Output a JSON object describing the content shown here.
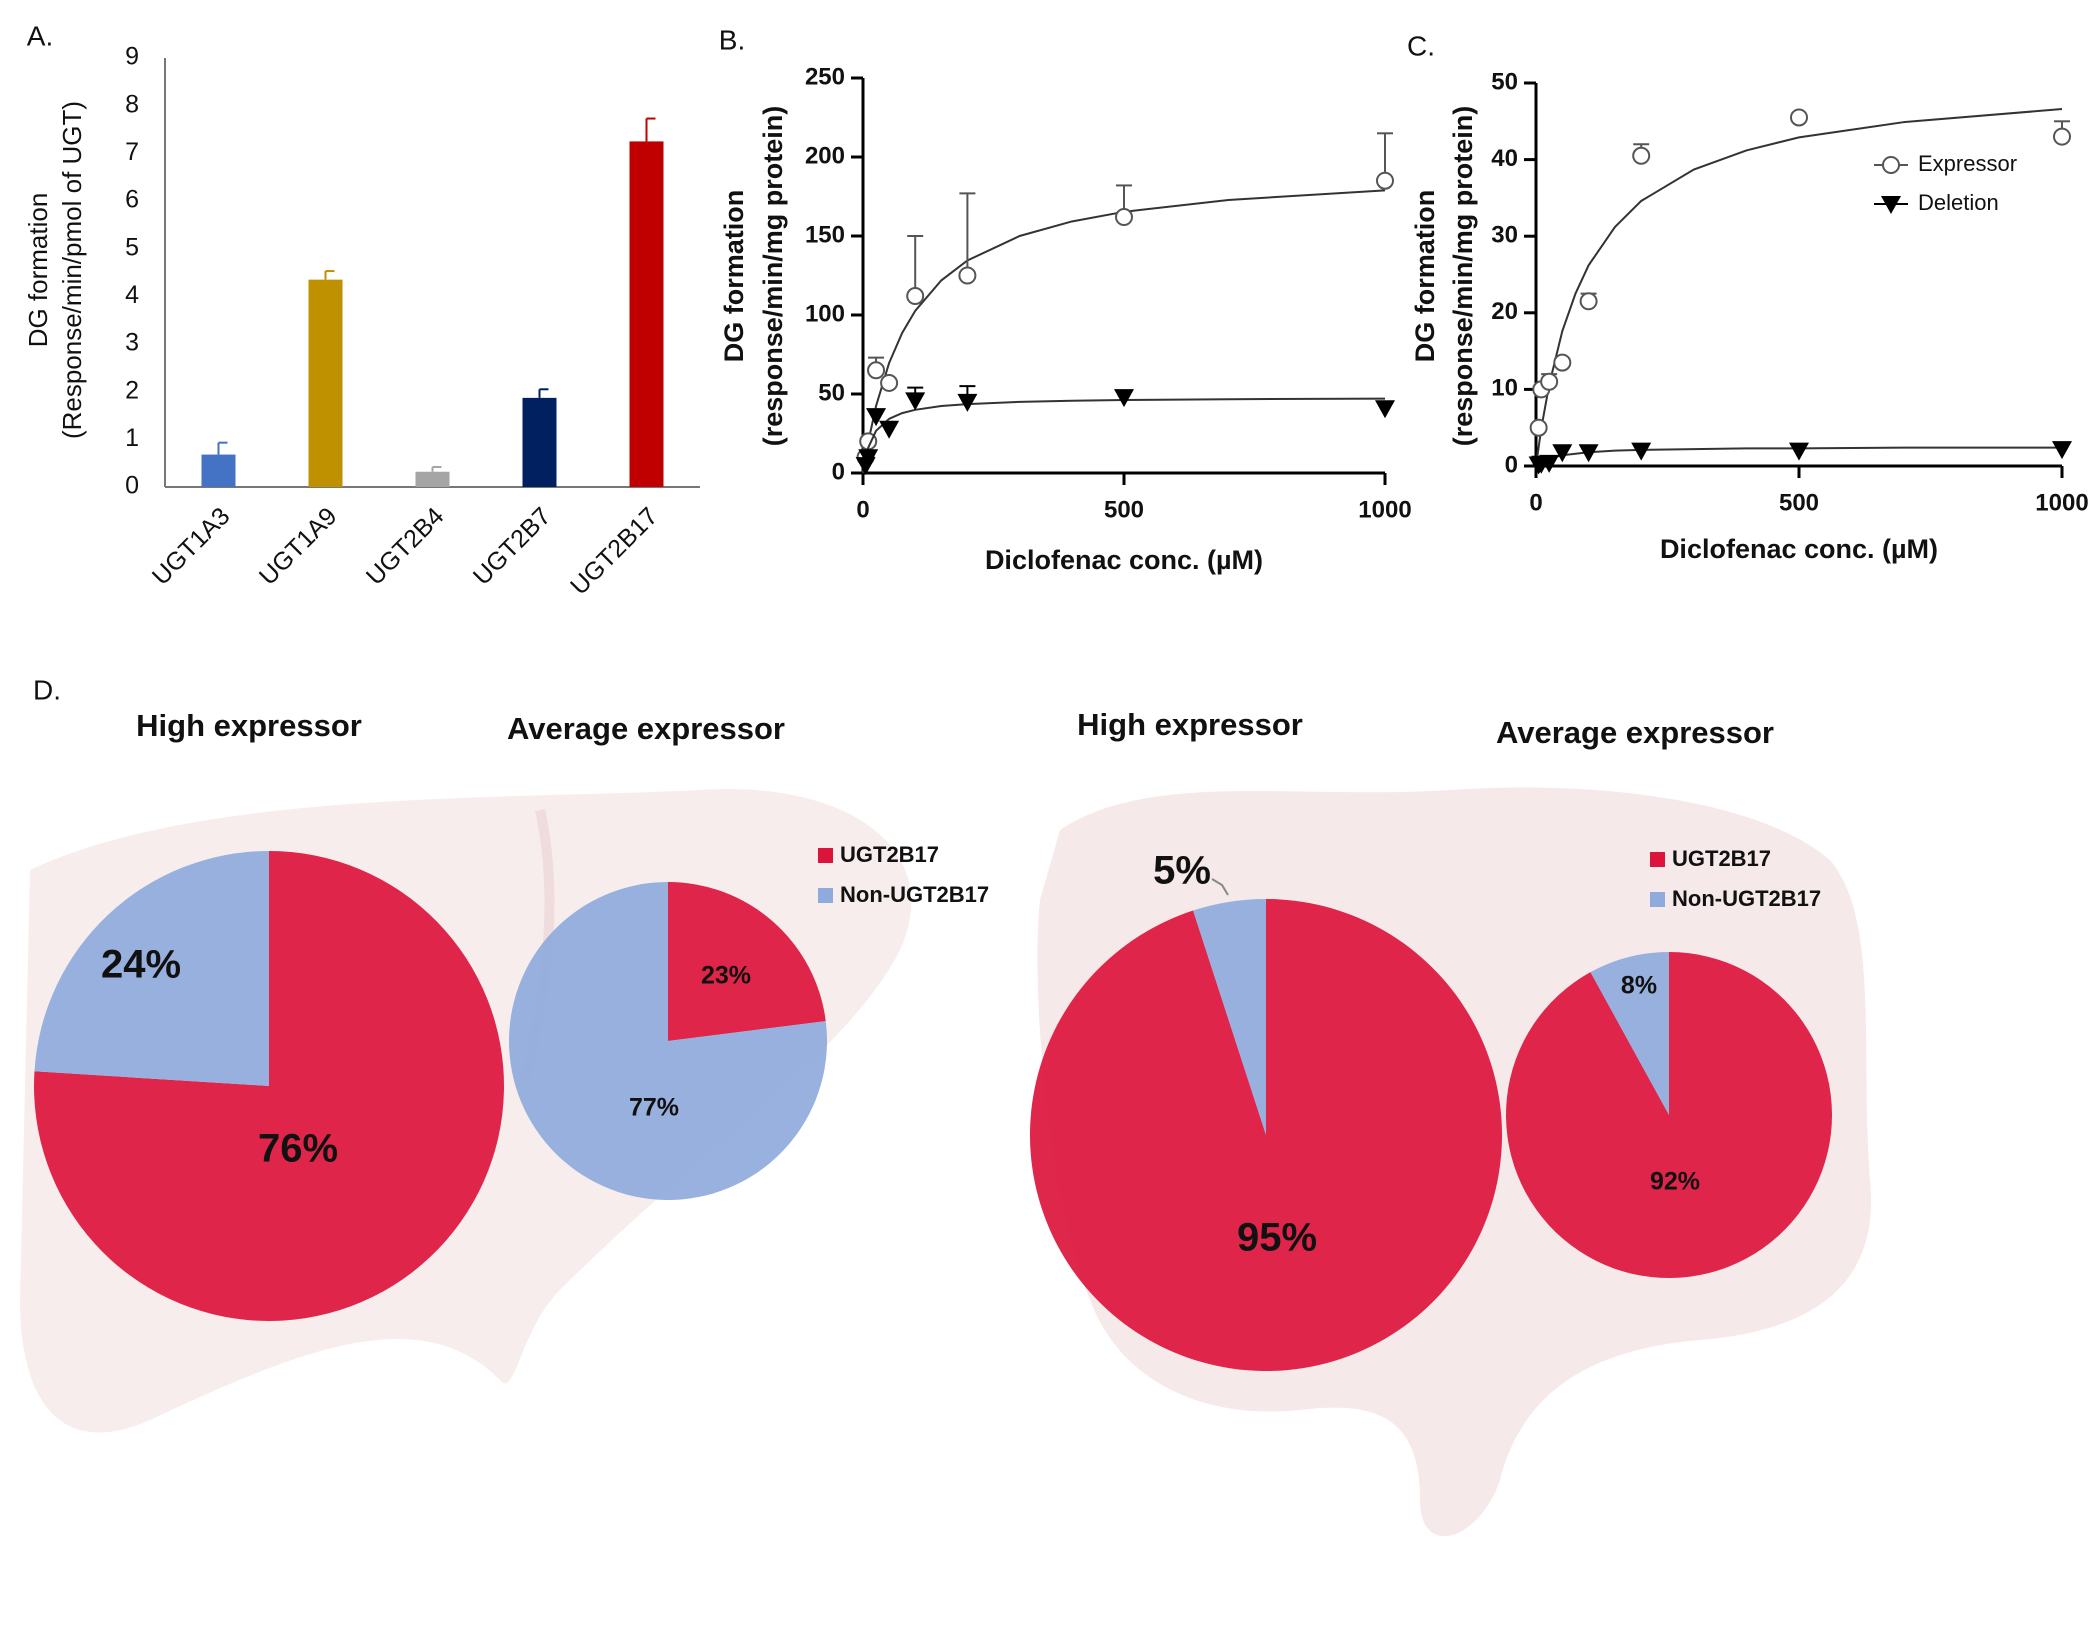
{
  "chart_data": [
    {
      "type": "bar",
      "label": "A.",
      "y_label": [
        "DG formation",
        "(Response/min/pmol of UGT)"
      ],
      "categories": [
        "UGT1A3",
        "UGT1A9",
        "UGT2B4",
        "UGT2B7",
        "UGT2B17"
      ],
      "values": [
        0.68,
        4.35,
        0.32,
        1.87,
        7.25
      ],
      "errors": [
        0.25,
        0.18,
        0.1,
        0.18,
        0.48
      ],
      "colors": [
        "#4472c4",
        "#bf9000",
        "#a5a5a5",
        "#002060",
        "#c00000"
      ],
      "ylim": [
        0,
        9
      ],
      "yticks": [
        0,
        1,
        2,
        3,
        4,
        5,
        6,
        7,
        8,
        9
      ]
    },
    {
      "type": "scatter",
      "label": "B.",
      "x_label": "Diclofenac conc. (µM)",
      "y_label": [
        "DG formation",
        "(response/min/mg protein)"
      ],
      "xlim": [
        0,
        1000
      ],
      "xticks": [
        0,
        500,
        1000
      ],
      "ylim": [
        0,
        250
      ],
      "yticks": [
        0,
        50,
        100,
        150,
        200,
        250
      ],
      "series": [
        {
          "marker": "open-circle",
          "color": "#555555",
          "x": [
            5,
            10,
            25,
            50,
            100,
            200,
            500,
            1000
          ],
          "values": [
            10,
            20,
            65,
            57,
            112,
            125,
            162,
            185
          ],
          "errors": [
            0,
            0,
            8,
            0,
            38,
            52,
            20,
            30
          ],
          "curve": {
            "x": [
              0,
              10,
              25,
              50,
              75,
              100,
              150,
              200,
              300,
              400,
              500,
              700,
              1000
            ],
            "values": [
              0,
              19.5,
              42.4,
              69.6,
              88.6,
              102.6,
              121.9,
              134.5,
              150,
              159.2,
              165.3,
              172.8,
              178.9
            ]
          }
        },
        {
          "marker": "filled-triangle-down",
          "color": "#000000",
          "x": [
            5,
            10,
            25,
            50,
            100,
            200,
            500,
            1000
          ],
          "values": [
            5,
            10,
            36,
            28,
            46,
            45,
            48,
            41
          ],
          "errors": [
            0,
            0,
            0,
            0,
            8,
            10,
            0,
            0
          ],
          "curve": {
            "x": [
              0,
              10,
              25,
              50,
              75,
              100,
              150,
              200,
              300,
              400,
              500,
              700,
              1000
            ],
            "values": [
              0,
              16,
              26.7,
              34.3,
              37.9,
              40,
              42.4,
              43.6,
              45,
              45.7,
              46.2,
              46.7,
              47.1
            ]
          }
        }
      ]
    },
    {
      "type": "scatter",
      "label": "C.",
      "x_label": "Diclofenac conc. (µM)",
      "y_label": [
        "DG formation",
        "(response/min/mg protein)"
      ],
      "xlim": [
        0,
        1000
      ],
      "xticks": [
        0,
        500,
        1000
      ],
      "ylim": [
        0,
        50
      ],
      "yticks": [
        0,
        10,
        20,
        30,
        40,
        50
      ],
      "legend": "upper right",
      "series": [
        {
          "name": "Expressor",
          "marker": "open-circle",
          "color": "#555555",
          "x": [
            5,
            10,
            25,
            50,
            100,
            200,
            500,
            1000
          ],
          "values": [
            5,
            10,
            11,
            13.5,
            21.5,
            40.5,
            45.5,
            43
          ],
          "errors": [
            0,
            0,
            1,
            0.5,
            1,
            1.5,
            0,
            2
          ],
          "curve": {
            "x": [
              0,
              10,
              25,
              50,
              75,
              100,
              150,
              200,
              300,
              400,
              500,
              700,
              1000
            ],
            "values": [
              0,
              4.9,
              10.6,
              17.6,
              22.5,
              26.2,
              31.2,
              34.6,
              38.7,
              41.2,
              42.9,
              44.9,
              46.6
            ]
          }
        },
        {
          "name": "Deletion",
          "marker": "filled-triangle-down",
          "color": "#000000",
          "x": [
            5,
            10,
            25,
            50,
            100,
            200,
            500,
            1000
          ],
          "values": [
            0.2,
            0.3,
            0.4,
            1.8,
            1.8,
            2,
            2,
            2.2
          ],
          "errors": [
            0,
            0,
            0,
            0,
            0,
            0,
            0,
            0
          ],
          "curve": {
            "x": [
              0,
              10,
              25,
              50,
              75,
              100,
              150,
              200,
              300,
              400,
              500,
              700,
              1000
            ],
            "values": [
              0,
              0.5,
              1,
              1.4,
              1.6,
              1.8,
              2,
              2.1,
              2.2,
              2.3,
              2.3,
              2.4,
              2.4
            ]
          }
        }
      ]
    },
    {
      "type": "pie",
      "label": "D.",
      "title": "High expressor",
      "values": [
        76,
        24
      ],
      "value_labels": [
        "76%",
        "24%"
      ],
      "colors": [
        "#dc143c",
        "#8faadc"
      ]
    },
    {
      "type": "pie",
      "title": "Average expressor",
      "categories": [
        "UGT2B17",
        "Non-UGT2B17"
      ],
      "legend": true,
      "values": [
        23,
        77
      ],
      "value_labels": [
        "23%",
        "77%"
      ],
      "colors": [
        "#dc143c",
        "#8faadc"
      ]
    },
    {
      "type": "pie",
      "title": "High expressor",
      "values": [
        95,
        5
      ],
      "value_labels": [
        "95%",
        "5%"
      ],
      "colors": [
        "#dc143c",
        "#8faadc"
      ]
    },
    {
      "type": "pie",
      "title": "Average expressor",
      "categories": [
        "UGT2B17",
        "Non-UGT2B17"
      ],
      "legend": true,
      "values": [
        92,
        8
      ],
      "value_labels": [
        "92%",
        "8%"
      ],
      "colors": [
        "#dc143c",
        "#8faadc"
      ]
    }
  ]
}
